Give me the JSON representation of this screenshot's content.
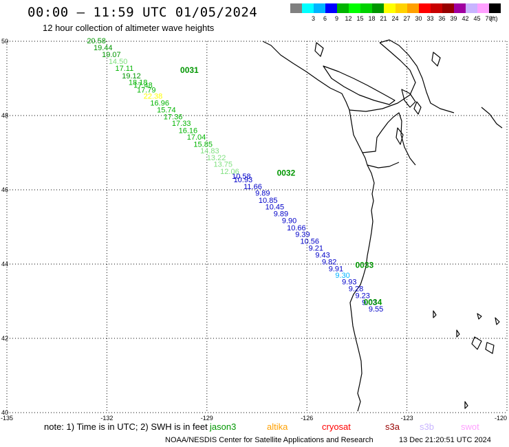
{
  "header": {
    "title": "00:00 – 11:59 UTC 01/05/2024",
    "subtitle": "12 hour collection of altimeter wave heights"
  },
  "legend": {
    "unit": "(ft)",
    "swatches": [
      {
        "label": "",
        "color": "#808080"
      },
      {
        "label": "3",
        "color": "#00ffff"
      },
      {
        "label": "6",
        "color": "#00b4ff"
      },
      {
        "label": "9",
        "color": "#0000ff"
      },
      {
        "label": "12",
        "color": "#00b400"
      },
      {
        "label": "15",
        "color": "#00ff00"
      },
      {
        "label": "18",
        "color": "#00d200"
      },
      {
        "label": "21",
        "color": "#009600"
      },
      {
        "label": "24",
        "color": "#ffff00"
      },
      {
        "label": "27",
        "color": "#ffd200"
      },
      {
        "label": "30",
        "color": "#ffa000"
      },
      {
        "label": "33",
        "color": "#ff0000"
      },
      {
        "label": "36",
        "color": "#c80000"
      },
      {
        "label": "39",
        "color": "#960000"
      },
      {
        "label": "42",
        "color": "#a000a0"
      },
      {
        "label": "45",
        "color": "#c8b4ff"
      },
      {
        "label": "70",
        "color": "#ffa0ff"
      },
      {
        "label": "",
        "color": "#000000"
      }
    ]
  },
  "axes": {
    "lon_labels": [
      "-135",
      "-132",
      "-129",
      "-126",
      "-123",
      "-120"
    ],
    "lat_labels": [
      "50",
      "48",
      "46",
      "44",
      "42",
      "40"
    ]
  },
  "passes": [
    {
      "id": "0031",
      "lon": -129.8,
      "lat": 49.15
    },
    {
      "id": "0032",
      "lon": -126.9,
      "lat": 46.38
    },
    {
      "id": "0033",
      "lon": -124.55,
      "lat": 43.9
    },
    {
      "id": "0034",
      "lon": -124.3,
      "lat": 42.9
    }
  ],
  "wave_heights": [
    {
      "text": "20.58",
      "lon": -132.6,
      "lat": 49.94,
      "color": "#009600"
    },
    {
      "text": "19.44",
      "lon": -132.4,
      "lat": 49.76,
      "color": "#009600"
    },
    {
      "text": "19.07",
      "lon": -132.15,
      "lat": 49.57,
      "color": "#009600"
    },
    {
      "text": "14.50",
      "lon": -131.95,
      "lat": 49.39,
      "color": "#7fe07f"
    },
    {
      "text": "17.11",
      "lon": -131.75,
      "lat": 49.2,
      "color": "#00b400"
    },
    {
      "text": "19.12",
      "lon": -131.55,
      "lat": 49.0,
      "color": "#009600"
    },
    {
      "text": "18.18",
      "lon": -131.35,
      "lat": 48.82,
      "color": "#00b400"
    },
    {
      "text": "17.48",
      "lon": -131.2,
      "lat": 48.75,
      "color": "#00b400"
    },
    {
      "text": "17.79",
      "lon": -131.1,
      "lat": 48.62,
      "color": "#00b400"
    },
    {
      "text": "22.38",
      "lon": -130.9,
      "lat": 48.45,
      "color": "#ffff00"
    },
    {
      "text": "16.96",
      "lon": -130.7,
      "lat": 48.27,
      "color": "#00b400"
    },
    {
      "text": "15.74",
      "lon": -130.5,
      "lat": 48.08,
      "color": "#00b400"
    },
    {
      "text": "17.36",
      "lon": -130.3,
      "lat": 47.9,
      "color": "#00b400"
    },
    {
      "text": "17.33",
      "lon": -130.05,
      "lat": 47.72,
      "color": "#00b400"
    },
    {
      "text": "16.16",
      "lon": -129.85,
      "lat": 47.53,
      "color": "#00b400"
    },
    {
      "text": "17.04",
      "lon": -129.6,
      "lat": 47.35,
      "color": "#00b400"
    },
    {
      "text": "15.85",
      "lon": -129.4,
      "lat": 47.16,
      "color": "#00b400"
    },
    {
      "text": "14.83",
      "lon": -129.2,
      "lat": 46.98,
      "color": "#7fe07f"
    },
    {
      "text": "13.22",
      "lon": -129.0,
      "lat": 46.8,
      "color": "#7fe07f"
    },
    {
      "text": "13.75",
      "lon": -128.8,
      "lat": 46.62,
      "color": "#7fe07f"
    },
    {
      "text": "12.06",
      "lon": -128.6,
      "lat": 46.43,
      "color": "#7fe07f"
    },
    {
      "text": "10.58",
      "lon": -128.25,
      "lat": 46.3,
      "color": "#0000c8"
    },
    {
      "text": "10.93",
      "lon": -128.2,
      "lat": 46.2,
      "color": "#0000c8"
    },
    {
      "text": "11.66",
      "lon": -127.9,
      "lat": 46.02,
      "color": "#0000c8"
    },
    {
      "text": "9.89",
      "lon": -127.55,
      "lat": 45.84,
      "color": "#0000c8"
    },
    {
      "text": "10.85",
      "lon": -127.45,
      "lat": 45.65,
      "color": "#0000c8"
    },
    {
      "text": "10.45",
      "lon": -127.25,
      "lat": 45.47,
      "color": "#0000c8"
    },
    {
      "text": "9.89",
      "lon": -127.0,
      "lat": 45.29,
      "color": "#0000c8"
    },
    {
      "text": "9.90",
      "lon": -126.75,
      "lat": 45.1,
      "color": "#0000c8"
    },
    {
      "text": "10.66",
      "lon": -126.6,
      "lat": 44.91,
      "color": "#0000c8"
    },
    {
      "text": "9.39",
      "lon": -126.35,
      "lat": 44.73,
      "color": "#0000c8"
    },
    {
      "text": "10.56",
      "lon": -126.2,
      "lat": 44.55,
      "color": "#0000c8"
    },
    {
      "text": "9.21",
      "lon": -125.95,
      "lat": 44.36,
      "color": "#0000c8"
    },
    {
      "text": "9.43",
      "lon": -125.75,
      "lat": 44.18,
      "color": "#0000c8"
    },
    {
      "text": "9.82",
      "lon": -125.55,
      "lat": 43.99,
      "color": "#0000c8"
    },
    {
      "text": "9.91",
      "lon": -125.35,
      "lat": 43.81,
      "color": "#0000c8"
    },
    {
      "text": "9.30",
      "lon": -125.15,
      "lat": 43.63,
      "color": "#00b4ff"
    },
    {
      "text": "9.93",
      "lon": -124.95,
      "lat": 43.45,
      "color": "#0000c8"
    },
    {
      "text": "9.28",
      "lon": -124.75,
      "lat": 43.27,
      "color": "#0000c8"
    },
    {
      "text": "9.23",
      "lon": -124.55,
      "lat": 43.08,
      "color": "#0000c8"
    },
    {
      "text": "9.03",
      "lon": -124.35,
      "lat": 42.9,
      "color": "#0000c8"
    },
    {
      "text": "9.55",
      "lon": -124.15,
      "lat": 42.72,
      "color": "#0000c8"
    }
  ],
  "footer": {
    "note": "note:  1) Time is in UTC;  2) SWH is in feet",
    "satellites": [
      {
        "name": "jason3",
        "color": "#009600"
      },
      {
        "name": "altika",
        "color": "#ffa000"
      },
      {
        "name": "cryosat",
        "color": "#ff0000"
      },
      {
        "name": "s3a",
        "color": "#960000"
      },
      {
        "name": "s3b",
        "color": "#c8b4ff"
      },
      {
        "name": "swot",
        "color": "#ffa0ff"
      }
    ],
    "credit": "NOAA/NESDIS Center for Satellite Applications and Research",
    "timestamp": "13 Dec 21:20:51 UTC 2024"
  }
}
